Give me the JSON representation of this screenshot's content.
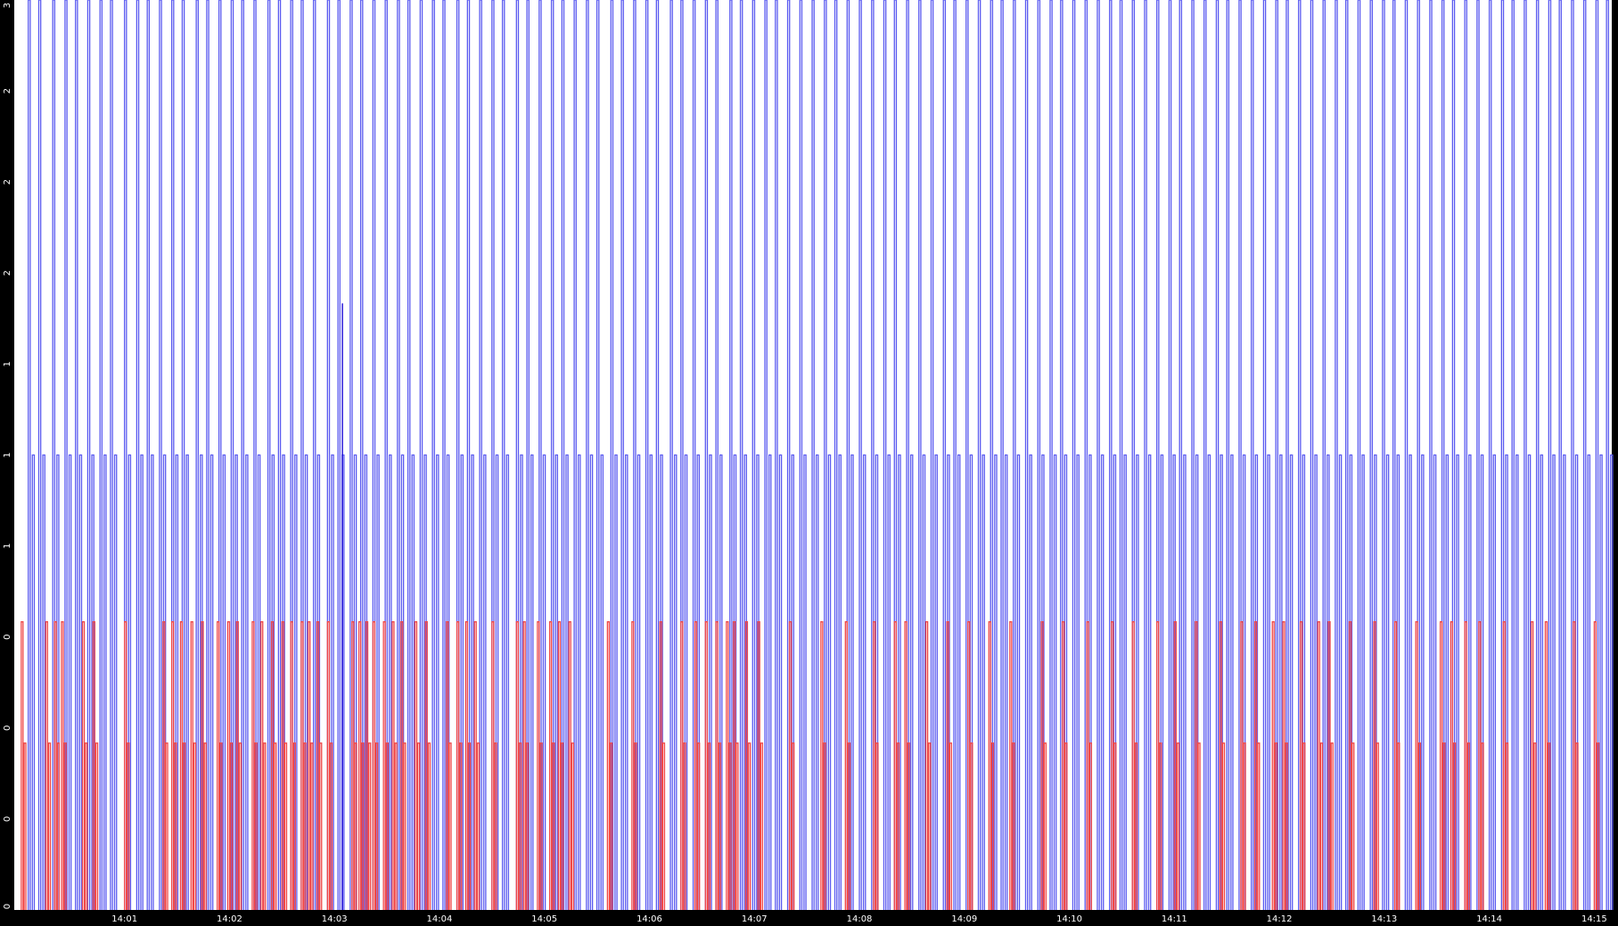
{
  "colors": {
    "background": "#000000",
    "plot_background": "#ffffff",
    "axis_text": "#ffffff",
    "ocean_series": "#5b5bf0",
    "ocean_series_dark": "#2b1bd8",
    "rubber_series": "#f04848",
    "rubber_series_dark": "#8a1050"
  },
  "chart_data": {
    "type": "line",
    "title": "",
    "xlabel": "",
    "ylabel": "",
    "grid": false,
    "x_unit": "time HH:MM",
    "xlim": [
      "13:59:57",
      "14:15:10"
    ],
    "x_tick_labels": [
      "14:01",
      "14:02",
      "14:03",
      "14:04",
      "14:05",
      "14:06",
      "14:07",
      "14:08",
      "14:09",
      "14:10",
      "14:11",
      "14:12",
      "14:13",
      "14:14",
      "14:15"
    ],
    "y_tick_labels": [
      "0",
      "0",
      "0",
      "0",
      "1",
      "1",
      "1",
      "2",
      "2",
      "2",
      "3"
    ],
    "ylim": [
      0,
      3
    ],
    "series": [
      {
        "style": "pulse",
        "color_key": "ocean_series",
        "base_level": 0,
        "peak_level": 3,
        "secondary_level": 1.5,
        "pulse_times": [
          "14:00:05",
          "14:00:11",
          "14:00:19",
          "14:00:26",
          "14:00:32",
          "14:00:39",
          "14:00:46",
          "14:00:52",
          "14:01:00",
          "14:01:07",
          "14:01:13",
          "14:01:20",
          "14:01:27",
          "14:01:33",
          "14:01:41",
          "14:01:47",
          "14:01:54",
          "14:02:01",
          "14:02:07",
          "14:02:14",
          "14:02:22",
          "14:02:28",
          "14:02:35",
          "14:02:41",
          "14:02:48",
          "14:02:56",
          "14:03:02",
          "14:03:09",
          "14:03:15",
          "14:03:22",
          "14:03:29",
          "14:03:36",
          "14:03:42",
          "14:03:49",
          "14:03:56",
          "14:04:02",
          "14:04:10",
          "14:04:16",
          "14:04:23",
          "14:04:30",
          "14:04:36",
          "14:04:44",
          "14:04:50",
          "14:04:57",
          "14:05:04",
          "14:05:10",
          "14:05:17",
          "14:05:24",
          "14:05:30",
          "14:05:38",
          "14:05:44",
          "14:05:51",
          "14:05:58",
          "14:06:04",
          "14:06:12",
          "14:06:18",
          "14:06:25",
          "14:06:32",
          "14:06:38",
          "14:06:46",
          "14:06:52",
          "14:06:59",
          "14:07:06",
          "14:07:12",
          "14:07:19",
          "14:07:26",
          "14:07:33",
          "14:07:40",
          "14:07:46",
          "14:07:53",
          "14:08:00",
          "14:08:07",
          "14:08:14",
          "14:08:20",
          "14:08:27",
          "14:08:34",
          "14:08:41",
          "14:08:48",
          "14:08:54",
          "14:09:01",
          "14:09:08",
          "14:09:15",
          "14:09:21",
          "14:09:28",
          "14:09:35",
          "14:09:42",
          "14:09:49",
          "14:09:55",
          "14:10:02",
          "14:10:09",
          "14:10:16",
          "14:10:23",
          "14:10:29",
          "14:10:36",
          "14:10:43",
          "14:10:50",
          "14:10:57",
          "14:11:03",
          "14:11:10",
          "14:11:17",
          "14:11:24",
          "14:11:30",
          "14:11:37",
          "14:11:44",
          "14:11:51",
          "14:11:58",
          "14:12:04",
          "14:12:11",
          "14:12:18",
          "14:12:25",
          "14:12:32",
          "14:12:38",
          "14:12:45",
          "14:12:52",
          "14:12:59",
          "14:13:05",
          "14:13:12",
          "14:13:19",
          "14:13:26",
          "14:13:33",
          "14:13:39",
          "14:13:46",
          "14:13:53",
          "14:14:00",
          "14:14:07",
          "14:14:13",
          "14:14:20",
          "14:14:27",
          "14:14:34",
          "14:14:40",
          "14:14:47",
          "14:14:54",
          "14:15:01",
          "14:15:07"
        ],
        "short_pulse_times": [
          "14:03:02"
        ],
        "short_pulse_level": 2
      },
      {
        "style": "pulse",
        "color_key": "rubber_series",
        "base_level": 0,
        "peak_level": 0.95,
        "secondary_level": 0.55,
        "pulse_times": [
          "14:00:01",
          "14:00:15",
          "14:00:20",
          "14:00:24",
          "14:00:36",
          "14:00:42",
          "14:01:00",
          "14:01:22",
          "14:01:27",
          "14:01:32",
          "14:01:38",
          "14:01:44",
          "14:01:53",
          "14:01:59",
          "14:02:04",
          "14:02:13",
          "14:02:18",
          "14:02:24",
          "14:02:30",
          "14:02:35",
          "14:02:41",
          "14:02:45",
          "14:02:50",
          "14:02:56",
          "14:03:10",
          "14:03:14",
          "14:03:18",
          "14:03:22",
          "14:03:28",
          "14:03:33",
          "14:03:38",
          "14:03:46",
          "14:03:52",
          "14:04:04",
          "14:04:10",
          "14:04:15",
          "14:04:20",
          "14:04:30",
          "14:04:44",
          "14:04:48",
          "14:04:56",
          "14:05:03",
          "14:05:08",
          "14:05:14",
          "14:05:36",
          "14:05:50",
          "14:06:06",
          "14:06:18",
          "14:06:26",
          "14:06:32",
          "14:06:38",
          "14:06:44",
          "14:06:48",
          "14:06:55",
          "14:07:02",
          "14:07:20",
          "14:07:38",
          "14:07:52",
          "14:08:08",
          "14:08:20",
          "14:08:26",
          "14:08:38",
          "14:08:50",
          "14:09:02",
          "14:09:14",
          "14:09:26",
          "14:09:44",
          "14:09:56",
          "14:10:10",
          "14:10:24",
          "14:10:36",
          "14:10:50",
          "14:11:00",
          "14:11:12",
          "14:11:26",
          "14:11:38",
          "14:11:46",
          "14:11:56",
          "14:12:02",
          "14:12:12",
          "14:12:22",
          "14:12:28",
          "14:12:40",
          "14:12:54",
          "14:13:06",
          "14:13:18",
          "14:13:32",
          "14:13:38",
          "14:13:46",
          "14:13:54",
          "14:14:08",
          "14:14:24",
          "14:14:32",
          "14:14:48",
          "14:15:00"
        ]
      }
    ]
  }
}
